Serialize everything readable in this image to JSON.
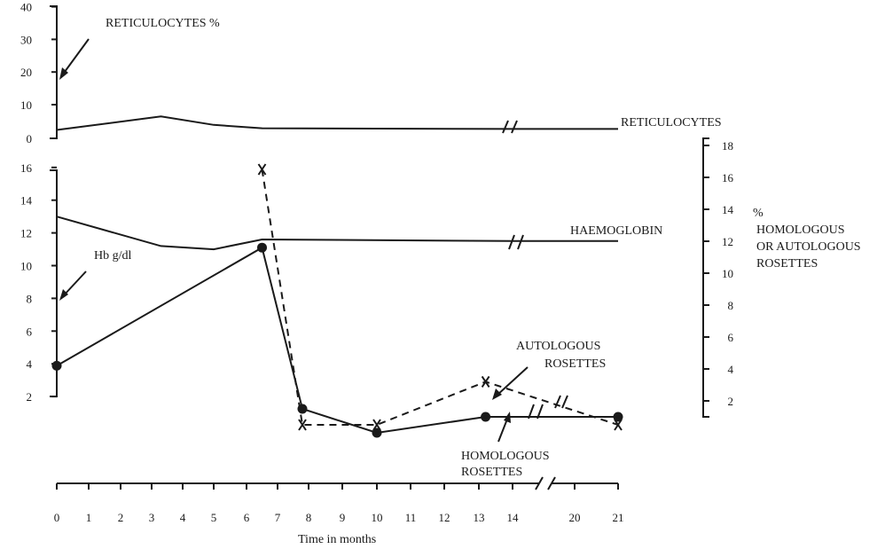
{
  "chart_data": {
    "type": "line",
    "x": [
      0,
      1,
      2,
      3,
      4,
      5,
      6,
      7,
      8,
      9,
      10,
      11,
      12,
      13,
      14,
      20,
      21
    ],
    "x_tick_labels": [
      "0",
      "1",
      "2",
      "3",
      "4",
      "5",
      "6",
      "7",
      "8",
      "9",
      "10",
      "11",
      "12",
      "13",
      "14",
      "20",
      "21"
    ],
    "xlabel": "Time in months",
    "axes": {
      "reticulocytes": {
        "ticks": [
          "0",
          "10",
          "20",
          "30",
          "40"
        ],
        "ylim": [
          0,
          40
        ]
      },
      "haemoglobin": {
        "ticks": [
          "2",
          "4",
          "6",
          "8",
          "10",
          "12",
          "14",
          "16"
        ],
        "ylim": [
          0,
          16
        ]
      },
      "rosettes": {
        "ticks": [
          "2",
          "4",
          "6",
          "8",
          "10",
          "12",
          "14",
          "16",
          "18"
        ],
        "ylim": [
          0,
          18
        ]
      }
    },
    "series": [
      {
        "name": "RETICULOCYTES",
        "axis": "reticulocytes",
        "style": "solid",
        "points": [
          [
            0,
            2.5
          ],
          [
            3.3,
            6.5
          ],
          [
            5,
            4
          ],
          [
            6.5,
            3
          ],
          [
            14,
            2.8
          ],
          [
            21,
            2.8
          ]
        ]
      },
      {
        "name": "HAEMOGLOBIN",
        "axis": "haemoglobin",
        "style": "solid",
        "points": [
          [
            0,
            13
          ],
          [
            3.3,
            11.2
          ],
          [
            5,
            11
          ],
          [
            6.5,
            11.6
          ],
          [
            14,
            11.5
          ],
          [
            21,
            11.5
          ]
        ]
      },
      {
        "name": "HOMOLOGOUS ROSETTES",
        "axis": "rosettes",
        "style": "solid",
        "marker": "dot",
        "points": [
          [
            0,
            4.2
          ],
          [
            6.5,
            11.6
          ],
          [
            7.8,
            1.5
          ],
          [
            10,
            0
          ],
          [
            13.2,
            1
          ],
          [
            14,
            1
          ],
          [
            21,
            1
          ]
        ]
      },
      {
        "name": "AUTOLOGOUS ROSETTES",
        "axis": "rosettes",
        "style": "dashed",
        "marker": "x",
        "points": [
          [
            6.5,
            16.5
          ],
          [
            7.8,
            0.5
          ],
          [
            10,
            0.5
          ],
          [
            13.2,
            3.2
          ],
          [
            21,
            0.5
          ]
        ]
      }
    ],
    "annotations": {
      "reticulocytes_axis_label": "RETICULOCYTES %",
      "reticulocytes_curve_label": "RETICULOCYTES",
      "haemoglobin_curve_label": "HAEMOGLOBIN",
      "hb_axis_label": "Hb g/dl",
      "right_axis_label_lines": [
        "%",
        "HOMOLOGOUS",
        "OR AUTOLOGOUS",
        "ROSETTES"
      ],
      "autologous_label_lines": [
        "AUTOLOGOUS",
        "ROSETTES"
      ],
      "homologous_label_lines": [
        "HOMOLOGOUS",
        "ROSETTES"
      ],
      "axis_break": "//"
    },
    "grid": false,
    "legend": "none"
  }
}
